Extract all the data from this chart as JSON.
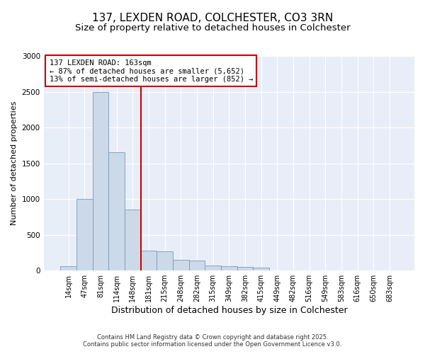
{
  "title": "137, LEXDEN ROAD, COLCHESTER, CO3 3RN",
  "subtitle": "Size of property relative to detached houses in Colchester",
  "xlabel": "Distribution of detached houses by size in Colchester",
  "ylabel": "Number of detached properties",
  "categories": [
    "14sqm",
    "47sqm",
    "81sqm",
    "114sqm",
    "148sqm",
    "181sqm",
    "215sqm",
    "248sqm",
    "282sqm",
    "315sqm",
    "349sqm",
    "382sqm",
    "415sqm",
    "449sqm",
    "482sqm",
    "516sqm",
    "549sqm",
    "583sqm",
    "616sqm",
    "650sqm",
    "683sqm"
  ],
  "values": [
    60,
    1000,
    2500,
    1650,
    850,
    280,
    270,
    155,
    140,
    70,
    60,
    50,
    45,
    5,
    0,
    0,
    0,
    0,
    0,
    0,
    0
  ],
  "bar_color": "#ccd9e8",
  "bar_edge_color": "#7799bb",
  "vline_x": 4.5,
  "vline_color": "#cc0000",
  "annotation_text": "137 LEXDEN ROAD: 163sqm\n← 87% of detached houses are smaller (5,652)\n13% of semi-detached houses are larger (852) →",
  "annotation_box_color": "#ffffff",
  "annotation_box_edge_color": "#cc0000",
  "ylim": [
    0,
    3000
  ],
  "yticks": [
    0,
    500,
    1000,
    1500,
    2000,
    2500,
    3000
  ],
  "background_color": "#e8eef8",
  "footer_line1": "Contains HM Land Registry data © Crown copyright and database right 2025.",
  "footer_line2": "Contains public sector information licensed under the Open Government Licence v3.0.",
  "title_fontsize": 11,
  "subtitle_fontsize": 9.5,
  "tick_fontsize": 7,
  "ylabel_fontsize": 8,
  "xlabel_fontsize": 9
}
